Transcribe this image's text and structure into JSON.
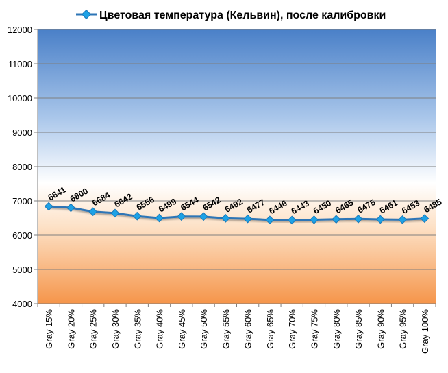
{
  "chart_data": {
    "type": "line",
    "title": "Цветовая температура (Кельвин), после калибровки",
    "categories": [
      "Gray 15%",
      "Gray 20%",
      "Gray 25%",
      "Gray 30%",
      "Gray 35%",
      "Gray 40%",
      "Gray 45%",
      "Gray 50%",
      "Gray 55%",
      "Gray 60%",
      "Gray 65%",
      "Gray 70%",
      "Gray 75%",
      "Gray 80%",
      "Gray 85%",
      "Gray 90%",
      "Gray 95%",
      "Gray 100%"
    ],
    "series": [
      {
        "name": "Цветовая температура (Кельвин), после калибровки",
        "values": [
          6841,
          6800,
          6684,
          6642,
          6556,
          6499,
          6544,
          6542,
          6492,
          6477,
          6446,
          6443,
          6450,
          6465,
          6475,
          6461,
          6453,
          6485
        ],
        "color": "#2E75B6",
        "marker_color": "#1EA2E6"
      }
    ],
    "ylim": [
      4000,
      12000
    ],
    "yticks": [
      4000,
      5000,
      6000,
      7000,
      8000,
      9000,
      10000,
      11000,
      12000
    ],
    "grid": true,
    "legend": "top",
    "data_labels": true,
    "background_gradient": [
      "#4F86C6",
      "#FFFFFF",
      "#F59A4A"
    ]
  }
}
